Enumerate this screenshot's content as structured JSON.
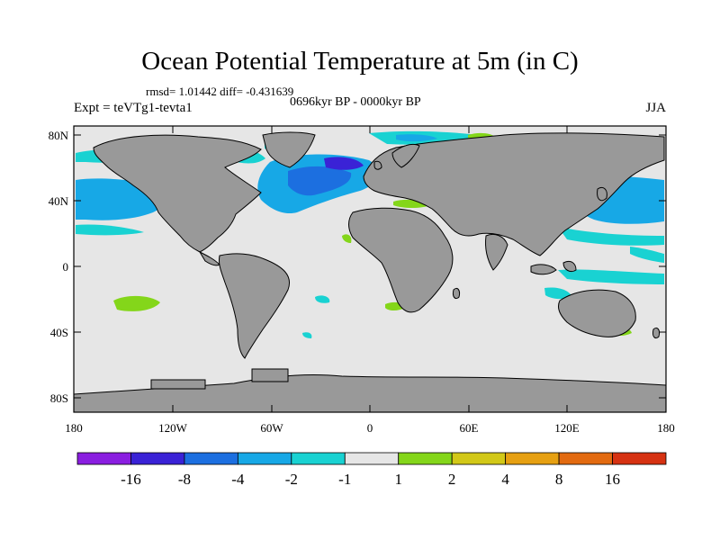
{
  "title": "Ocean Potential Temperature at 5m (in C)",
  "stats": "rmsd= 1.01442 diff= -0.431639",
  "period": "0696kyr BP - 0000kyr BP",
  "experiment": "Expt = teVTg1-tevta1",
  "season": "JJA",
  "lat_ticks": [
    "80N",
    "40N",
    "0",
    "40S",
    "80S"
  ],
  "lon_ticks": [
    "180",
    "120W",
    "60W",
    "0",
    "60E",
    "120E",
    "180"
  ],
  "colorbar": {
    "labels": [
      "-16",
      "-8",
      "-4",
      "-2",
      "-1",
      "1",
      "2",
      "4",
      "8",
      "16"
    ],
    "colors": [
      "#8a1ee0",
      "#3a22d6",
      "#1c6fe0",
      "#17a8e6",
      "#19d2d2",
      "#e6e6e6",
      "#84d61a",
      "#d2c818",
      "#e6a012",
      "#e26a10",
      "#d63212"
    ]
  },
  "colors": {
    "land": "#999999",
    "ocean_neutral": "#e6e6e6"
  }
}
